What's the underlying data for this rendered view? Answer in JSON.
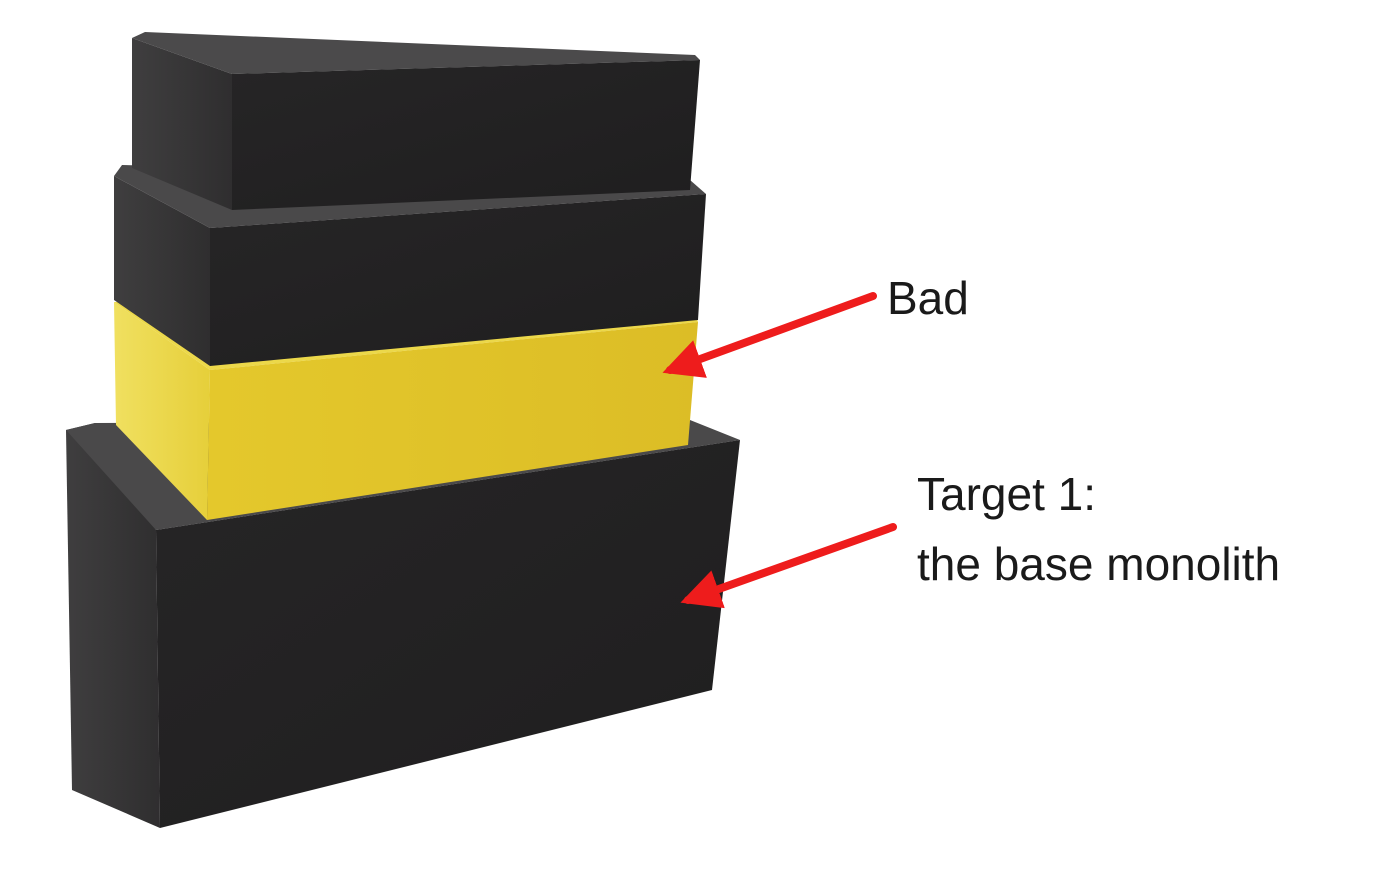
{
  "labels": {
    "bad": "Bad",
    "target_line1": "Target 1:",
    "target_line2": "the base monolith"
  },
  "colors": {
    "background": "#ffffff",
    "block_front": "#232223",
    "block_side": "#3a393a",
    "block_top": "#4b4a4b",
    "highlight_front": "#dfc22a",
    "highlight_side": "#eedc55",
    "arrow": "#ee1c1c",
    "text": "#1a1a1a"
  },
  "blocks": [
    {
      "name": "top-block",
      "highlighted": false
    },
    {
      "name": "upper-middle-block",
      "highlighted": false
    },
    {
      "name": "bad-block",
      "highlighted": true
    },
    {
      "name": "base-monolith-block",
      "highlighted": false
    }
  ]
}
